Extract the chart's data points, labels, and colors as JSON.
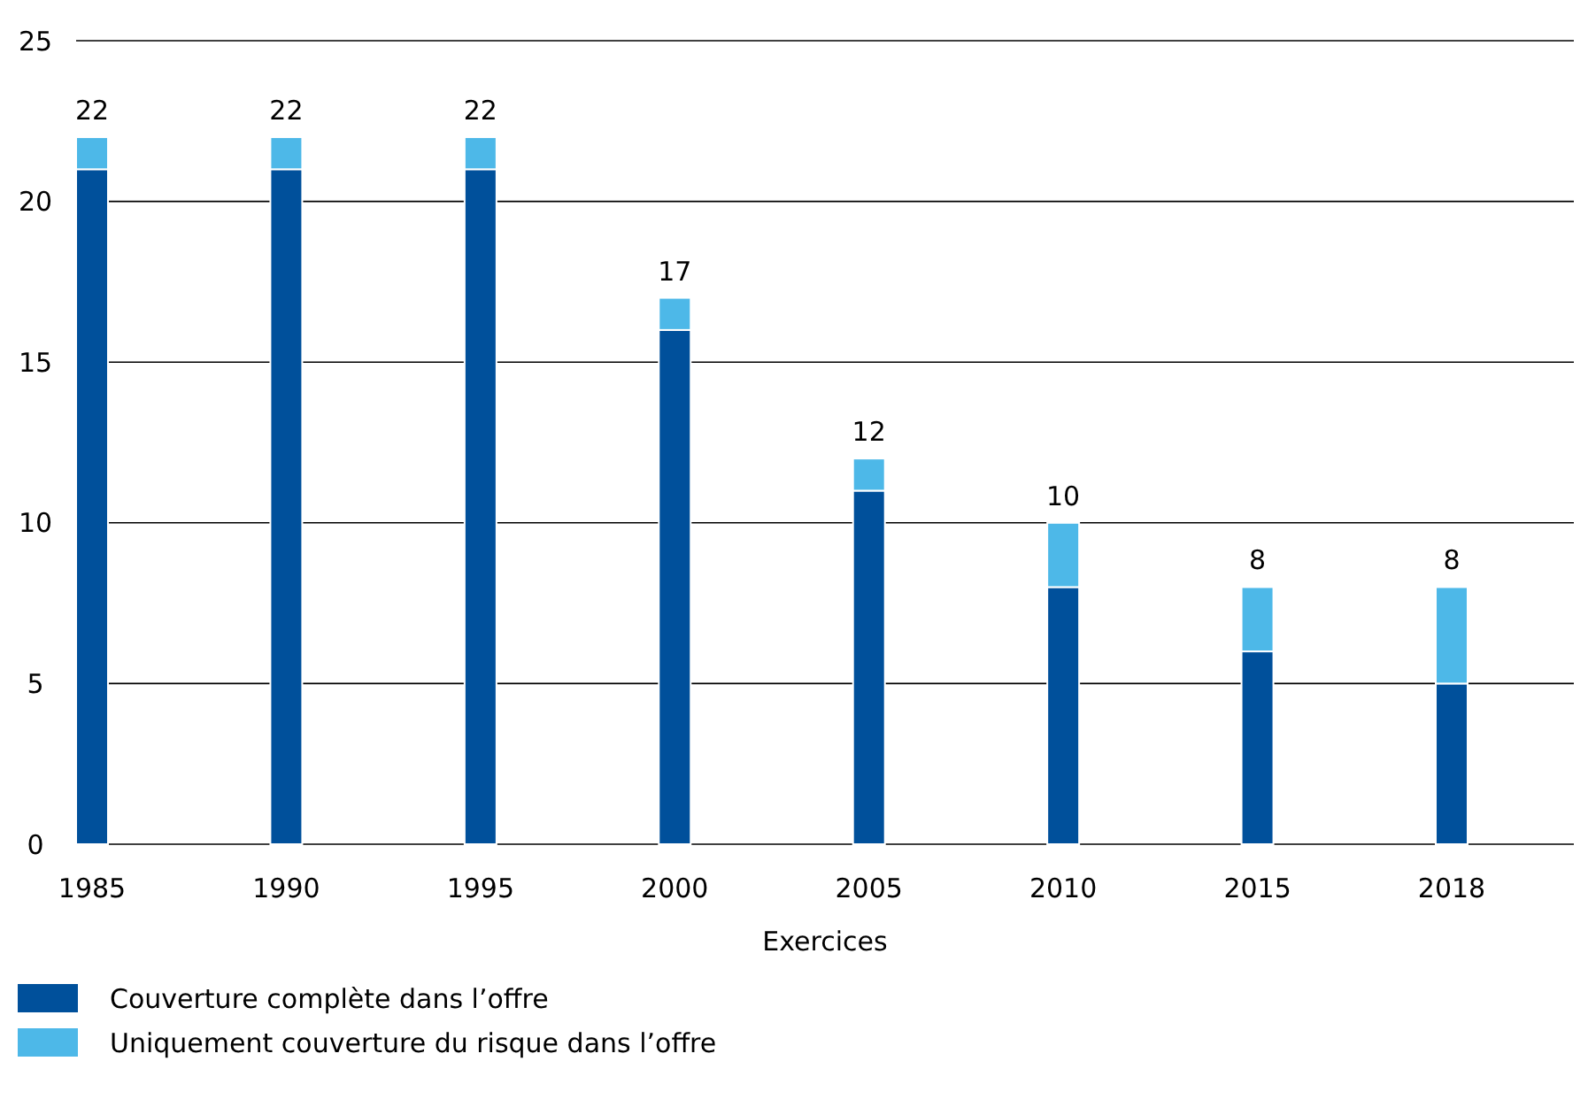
{
  "chart_data": {
    "type": "bar",
    "stacked": true,
    "xlabel": "Exercices",
    "categories": [
      "1985",
      "1990",
      "1995",
      "2000",
      "2005",
      "2010",
      "2015",
      "2018"
    ],
    "series": [
      {
        "name": "Couverture complète dans l’offre",
        "color": "#00509b",
        "values": [
          21,
          21,
          21,
          16,
          11,
          8,
          6,
          5
        ]
      },
      {
        "name": "Uniquement couverture du risque dans l’offre",
        "color": "#4db8e8",
        "values": [
          1,
          1,
          1,
          1,
          1,
          2,
          2,
          3
        ]
      }
    ],
    "totals": [
      "22",
      "22",
      "22",
      "17",
      "12",
      "10",
      "8",
      "8"
    ],
    "ylim": [
      0,
      25
    ],
    "yticks": [
      0,
      5,
      10,
      15,
      20,
      25
    ],
    "grid": "y",
    "legend": "bottom left"
  }
}
